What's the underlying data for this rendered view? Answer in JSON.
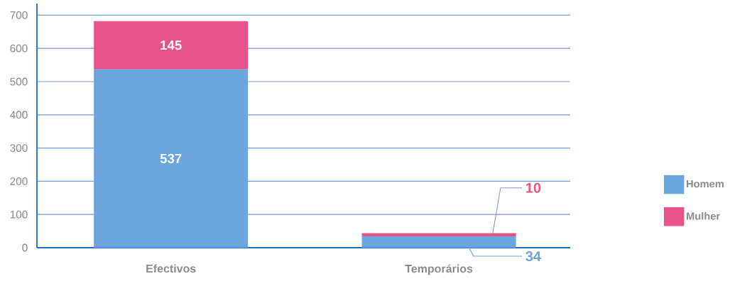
{
  "chart_data": {
    "type": "bar",
    "stacked": true,
    "categories": [
      "Efectivos",
      "Temporários"
    ],
    "series": [
      {
        "name": "Homem",
        "color": "#6aa6dc",
        "values": [
          537,
          34
        ]
      },
      {
        "name": "Mulher",
        "color": "#e8538a",
        "values": [
          145,
          10
        ]
      }
    ],
    "ylim": [
      0,
      735
    ],
    "yticks": [
      0,
      100,
      200,
      300,
      400,
      500,
      600,
      700
    ],
    "grid": "y",
    "legend": "right",
    "data_labels": true
  }
}
